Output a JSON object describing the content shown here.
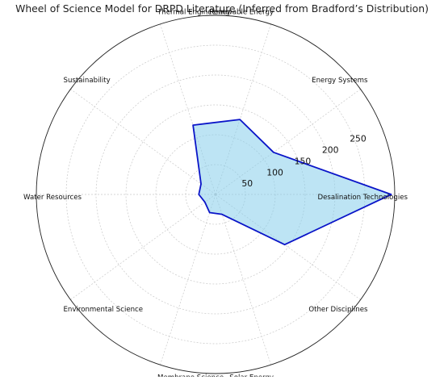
{
  "chart_data": {
    "type": "radar",
    "title": "Wheel of Science Model for DRPD Literature (Inferred from Bradford’s Distribution)",
    "categories": [
      "Desalination Technologies",
      "Energy Systems",
      "Renewable Energy",
      "Thermal Engineering",
      "Sustainability",
      "Water Resources",
      "Environmental Science",
      "Membrane Science",
      "Solar Energy",
      "Other Disciplines"
    ],
    "series": [
      {
        "values": [
          294,
          120,
          132,
          122,
          30,
          28,
          22,
          32,
          35,
          143
        ]
      }
    ],
    "rlim": [
      0,
      300
    ],
    "r_ticks": [
      50,
      100,
      150,
      200,
      250
    ],
    "r_tick_labels": [
      "50",
      "100",
      "150",
      "200",
      "250"
    ],
    "grid": true,
    "colors": {
      "line": "#0a14c8",
      "fill": "#87ceeb",
      "grid": "#c8c8c8",
      "frame": "#222222"
    }
  }
}
